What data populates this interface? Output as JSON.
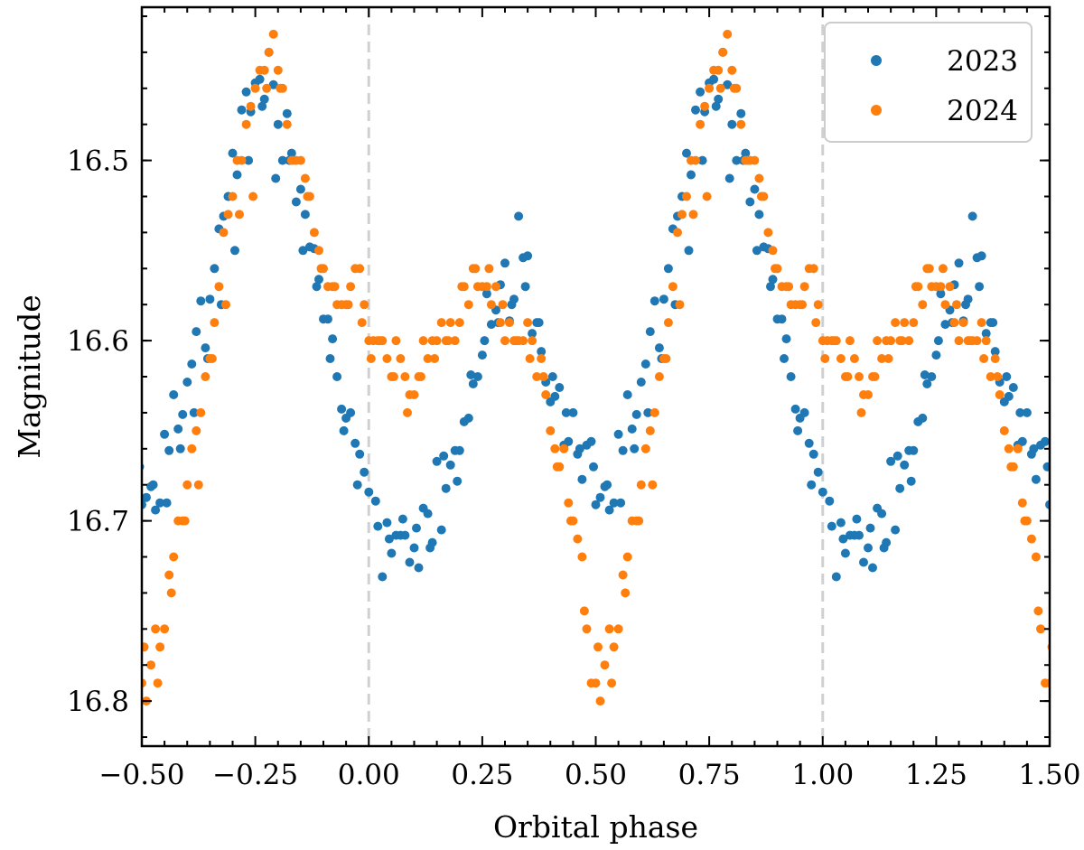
{
  "chart_data": {
    "type": "scatter",
    "title": "",
    "xlabel": "Orbital phase",
    "ylabel": "Magnitude",
    "xlim": [
      -0.5,
      1.5
    ],
    "ylim": [
      16.825,
      16.415
    ],
    "y_inverted": true,
    "grid": false,
    "legend_position": "top-right",
    "x_ticks": [
      -0.5,
      -0.25,
      0.0,
      0.25,
      0.5,
      0.75,
      1.0,
      1.25,
      1.5
    ],
    "x_tick_labels": [
      "−0.50",
      "−0.25",
      "0.00",
      "0.25",
      "0.50",
      "0.75",
      "1.00",
      "1.25",
      "1.50"
    ],
    "y_ticks": [
      16.5,
      16.6,
      16.7,
      16.8
    ],
    "y_tick_labels": [
      "16.5",
      "16.6",
      "16.7",
      "16.8"
    ],
    "reference_lines": [
      0.0,
      1.0
    ],
    "phase_period": 1.0,
    "series": [
      {
        "name": "2023",
        "color": "#1f77b4",
        "x": [
          0.0,
          0.02,
          0.03,
          0.04,
          0.05,
          0.06,
          0.07,
          0.08,
          0.09,
          0.1,
          0.11,
          0.12,
          0.13,
          0.14,
          0.15,
          0.16,
          0.17,
          0.18,
          0.19,
          0.2,
          0.21,
          0.22,
          0.23,
          0.24,
          0.25,
          0.26,
          0.27,
          0.28,
          0.29,
          0.3,
          0.31,
          0.32,
          0.33,
          0.34,
          0.35,
          0.36,
          0.37,
          0.38,
          0.39,
          0.4,
          0.41,
          0.42,
          0.43,
          0.44,
          0.45,
          0.46,
          0.47,
          0.48,
          0.49,
          0.5,
          0.51,
          0.52,
          0.53,
          0.54,
          0.55,
          0.56,
          0.57,
          0.58,
          0.59,
          0.6,
          0.61,
          0.62,
          0.63,
          0.64,
          0.65,
          0.66,
          0.67,
          0.68,
          0.69,
          0.7,
          0.71,
          0.72,
          0.73,
          0.74,
          0.75,
          0.76,
          0.77,
          0.78,
          0.79,
          0.8,
          0.81,
          0.82,
          0.83,
          0.84,
          0.85,
          0.86,
          0.87,
          0.88,
          0.89,
          0.9,
          0.91,
          0.92,
          0.93,
          0.94,
          0.95,
          0.96,
          0.97,
          0.98,
          0.99,
          0.015,
          0.045,
          0.075,
          0.105,
          0.135,
          0.165,
          0.195,
          0.225,
          0.255,
          0.285,
          0.315,
          0.345,
          0.375,
          0.405,
          0.435,
          0.465,
          0.495,
          0.525,
          0.555,
          0.585,
          0.615,
          0.645,
          0.675,
          0.705,
          0.735,
          0.765,
          0.795,
          0.825,
          0.855,
          0.885,
          0.915,
          0.945,
          0.975
        ],
        "y": [
          16.684,
          16.703,
          16.731,
          16.701,
          16.718,
          16.708,
          16.708,
          16.708,
          16.723,
          16.715,
          16.726,
          16.693,
          16.696,
          16.712,
          16.667,
          16.705,
          16.682,
          16.669,
          16.661,
          16.661,
          16.645,
          16.643,
          16.624,
          16.62,
          16.608,
          16.574,
          16.591,
          16.583,
          16.569,
          16.557,
          16.589,
          16.577,
          16.531,
          16.554,
          16.553,
          16.596,
          16.59,
          16.606,
          16.623,
          16.634,
          16.631,
          16.626,
          16.658,
          16.656,
          16.64,
          16.663,
          16.677,
          16.658,
          16.656,
          16.691,
          16.687,
          16.681,
          16.694,
          16.69,
          16.652,
          16.661,
          16.63,
          16.649,
          16.641,
          16.623,
          16.613,
          16.595,
          16.578,
          16.604,
          16.577,
          16.56,
          16.538,
          16.531,
          16.52,
          16.496,
          16.508,
          16.472,
          16.462,
          16.473,
          16.457,
          16.455,
          16.466,
          16.44,
          16.458,
          16.48,
          16.5,
          16.474,
          16.496,
          16.523,
          16.516,
          16.53,
          16.548,
          16.549,
          16.566,
          16.588,
          16.588,
          16.599,
          16.62,
          16.638,
          16.643,
          16.64,
          16.657,
          16.663,
          16.673,
          16.689,
          16.71,
          16.699,
          16.704,
          16.715,
          16.664,
          16.678,
          16.619,
          16.6,
          16.59,
          16.58,
          16.57,
          16.59,
          16.62,
          16.64,
          16.66,
          16.67,
          16.68,
          16.69,
          16.66,
          16.64,
          16.61,
          16.58,
          16.55,
          16.5,
          16.47,
          16.51,
          16.5,
          16.55,
          16.57,
          16.61,
          16.65,
          16.68
        ]
      },
      {
        "name": "2024",
        "color": "#ff7f0e",
        "x": [
          0.0,
          0.01,
          0.02,
          0.03,
          0.04,
          0.05,
          0.06,
          0.07,
          0.08,
          0.09,
          0.1,
          0.11,
          0.12,
          0.13,
          0.14,
          0.15,
          0.16,
          0.17,
          0.18,
          0.19,
          0.2,
          0.21,
          0.22,
          0.23,
          0.24,
          0.25,
          0.26,
          0.27,
          0.28,
          0.29,
          0.3,
          0.31,
          0.32,
          0.33,
          0.34,
          0.35,
          0.36,
          0.37,
          0.38,
          0.39,
          0.4,
          0.41,
          0.42,
          0.43,
          0.44,
          0.45,
          0.46,
          0.47,
          0.48,
          0.49,
          0.5,
          0.51,
          0.52,
          0.53,
          0.54,
          0.55,
          0.56,
          0.57,
          0.58,
          0.59,
          0.6,
          0.61,
          0.62,
          0.63,
          0.64,
          0.65,
          0.66,
          0.67,
          0.68,
          0.69,
          0.7,
          0.71,
          0.72,
          0.73,
          0.74,
          0.75,
          0.76,
          0.77,
          0.78,
          0.79,
          0.8,
          0.81,
          0.82,
          0.83,
          0.84,
          0.85,
          0.86,
          0.87,
          0.88,
          0.89,
          0.9,
          0.91,
          0.92,
          0.93,
          0.94,
          0.95,
          0.96,
          0.97,
          0.98,
          0.99,
          0.005,
          0.025,
          0.055,
          0.085,
          0.115,
          0.145,
          0.175,
          0.205,
          0.235,
          0.265,
          0.295,
          0.325,
          0.355,
          0.385,
          0.415,
          0.445,
          0.475,
          0.505,
          0.535,
          0.565,
          0.595,
          0.625,
          0.655,
          0.685,
          0.715,
          0.745,
          0.775,
          0.805,
          0.835,
          0.865,
          0.895,
          0.925,
          0.955,
          0.985
        ],
        "y": [
          16.6,
          16.6,
          16.6,
          16.6,
          16.61,
          16.62,
          16.6,
          16.61,
          16.62,
          16.63,
          16.63,
          16.62,
          16.6,
          16.61,
          16.6,
          16.6,
          16.59,
          16.6,
          16.59,
          16.6,
          16.59,
          16.57,
          16.58,
          16.56,
          16.57,
          16.57,
          16.57,
          16.58,
          16.57,
          16.59,
          16.6,
          16.59,
          16.6,
          16.6,
          16.6,
          16.59,
          16.6,
          16.62,
          16.61,
          16.63,
          16.65,
          16.66,
          16.67,
          16.66,
          16.69,
          16.7,
          16.71,
          16.72,
          16.76,
          16.79,
          16.79,
          16.8,
          16.78,
          16.76,
          16.77,
          16.76,
          16.73,
          16.72,
          16.7,
          16.7,
          16.68,
          16.66,
          16.65,
          16.64,
          16.62,
          16.61,
          16.59,
          16.57,
          16.54,
          16.53,
          16.52,
          16.5,
          16.5,
          16.48,
          16.47,
          16.46,
          16.45,
          16.45,
          16.44,
          16.43,
          16.45,
          16.46,
          16.48,
          16.5,
          16.5,
          16.5,
          16.51,
          16.52,
          16.54,
          16.55,
          16.56,
          16.57,
          16.57,
          16.58,
          16.58,
          16.58,
          16.57,
          16.56,
          16.56,
          16.58,
          16.61,
          16.6,
          16.62,
          16.64,
          16.62,
          16.61,
          16.6,
          16.57,
          16.56,
          16.56,
          16.58,
          16.6,
          16.61,
          16.62,
          16.67,
          16.7,
          16.75,
          16.77,
          16.79,
          16.74,
          16.7,
          16.68,
          16.61,
          16.58,
          16.53,
          16.52,
          16.46,
          16.46,
          16.5,
          16.52,
          16.56,
          16.57,
          16.58,
          16.59
        ]
      }
    ]
  }
}
